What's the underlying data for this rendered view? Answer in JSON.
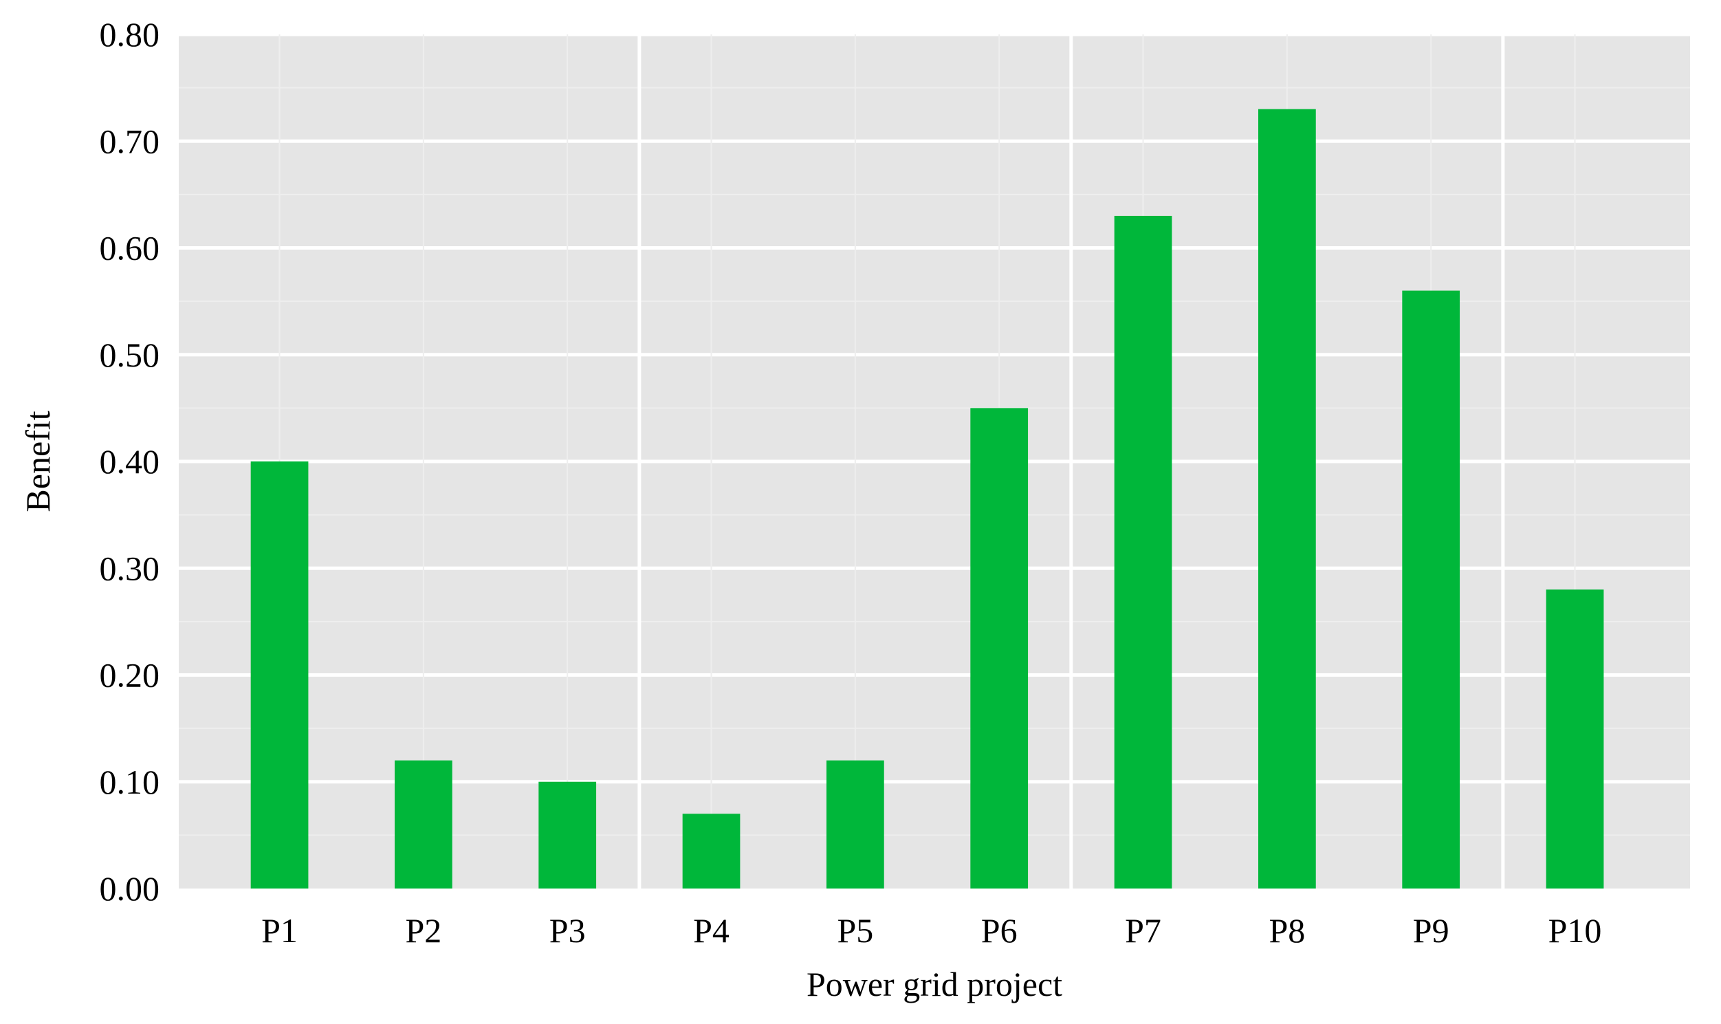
{
  "chart_data": {
    "type": "bar",
    "title": "",
    "xlabel": "Power grid project",
    "ylabel": "Benefit",
    "categories": [
      "P1",
      "P2",
      "P3",
      "P4",
      "P5",
      "P6",
      "P7",
      "P8",
      "P9",
      "P10"
    ],
    "values": [
      0.4,
      0.12,
      0.1,
      0.07,
      0.12,
      0.45,
      0.63,
      0.73,
      0.56,
      0.28
    ],
    "ylim": [
      0,
      0.8
    ],
    "yticks": [
      0.0,
      0.1,
      0.2,
      0.3,
      0.4,
      0.5,
      0.6,
      0.7,
      0.8
    ],
    "ytick_labels": [
      "0.00",
      "0.10",
      "0.20",
      "0.30",
      "0.40",
      "0.50",
      "0.60",
      "0.70",
      "0.80"
    ],
    "grid": true,
    "legend": "none",
    "colors": {
      "bar": "#00b73a",
      "panel": "#e5e5e5",
      "grid_major": "#ffffff",
      "grid_minor": "#eeeeee"
    }
  }
}
